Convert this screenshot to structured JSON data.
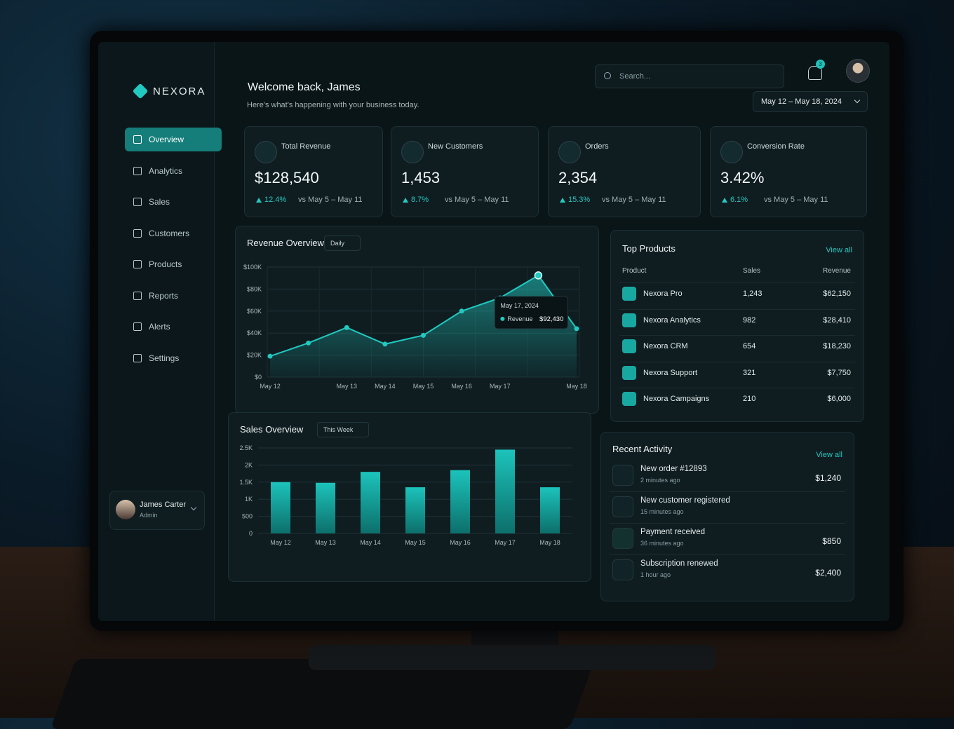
{
  "sidebar": {
    "brand": "NEXORA",
    "nav": [
      "Overview",
      "Analytics",
      "Sales",
      "Customers",
      "Products",
      "Reports",
      "Alerts",
      "Settings"
    ],
    "user": {
      "name": "James Carter",
      "role": "Admin"
    }
  },
  "header": {
    "title": "Welcome back, James",
    "subtitle": "Here's what's happening with your business today.",
    "search": "Search...",
    "notifications": "3",
    "date_range": "May 12 – May 18, 2024"
  },
  "kpis": [
    {
      "label": "Total Revenue",
      "value": "$128,540",
      "change": "12.4%",
      "period": "vs May 5 – May 11"
    },
    {
      "label": "New Customers",
      "value": "1,453",
      "change": "8.7%",
      "period": "vs May 5 – May 11"
    },
    {
      "label": "Orders",
      "value": "2,354",
      "change": "15.3%",
      "period": "vs May 5 – May 11"
    },
    {
      "label": "Conversion Rate",
      "value": "3.42%",
      "change": "6.1%",
      "period": "vs May 5 – May 11"
    }
  ],
  "revenue_chart": {
    "type": "area",
    "title": "Revenue Overview",
    "period": "Daily",
    "color": "#22c9c0",
    "categories": [
      "May 12",
      null,
      "May 13",
      "May 14",
      "May 15",
      "May 16",
      "May 17",
      null,
      "May 18"
    ],
    "values": [
      19000,
      31000,
      45000,
      30000,
      38000,
      60000,
      72000,
      92430,
      44000
    ],
    "value_labels": [
      null,
      null,
      null,
      null,
      null,
      null,
      null,
      "$92,430",
      null
    ],
    "tooltip": {
      "date": "May 17, 2024",
      "series": "Revenue"
    },
    "ylim": [
      0,
      100000
    ],
    "yticks": [
      {
        "value": 0,
        "label": "$0"
      },
      {
        "value": 20000,
        "label": "$20K"
      },
      {
        "value": 40000,
        "label": "$40K"
      },
      {
        "value": 60000,
        "label": "$60K"
      },
      {
        "value": 80000,
        "label": "$80K"
      },
      {
        "value": 100000,
        "label": "$100K"
      }
    ],
    "grid": true
  },
  "sales_chart": {
    "type": "bar",
    "title": "Sales Overview",
    "period": "This Week",
    "color": "#1cc3bb",
    "categories": [
      "May 12",
      "May 13",
      "May 14",
      "May 15",
      "May 16",
      "May 17",
      "May 18"
    ],
    "values": [
      1500,
      1480,
      1800,
      1350,
      1850,
      2450,
      1350
    ],
    "ylim": [
      0,
      2500
    ],
    "yticks": [
      0,
      500,
      {
        "value": 1000,
        "label": "1K"
      },
      {
        "value": 1500,
        "label": "1.5K"
      },
      {
        "value": 2000,
        "label": "2K"
      },
      {
        "value": 2500,
        "label": "2.5K"
      }
    ],
    "grid": true
  },
  "top_products": {
    "title": "Top Products",
    "link": "View all",
    "columns": [
      "Product",
      "Sales",
      "Revenue"
    ],
    "rows": [
      [
        "Nexora Pro",
        "1,243",
        "$62,150"
      ],
      [
        "Nexora Analytics",
        "982",
        "$28,410"
      ],
      [
        "Nexora CRM",
        "654",
        "$18,230"
      ],
      [
        "Nexora Support",
        "321",
        "$7,750"
      ],
      [
        "Nexora Campaigns",
        "210",
        "$6,000"
      ]
    ]
  },
  "recent_activity": {
    "title": "Recent Activity",
    "link": "View all",
    "items": [
      {
        "title": "New order #12893",
        "time": "2 minutes ago",
        "amount": "$1,240"
      },
      {
        "title": "New customer registered",
        "time": "15 minutes ago"
      },
      {
        "title": "Payment received",
        "time": "36 minutes ago",
        "amount": "$850"
      },
      {
        "title": "Subscription renewed",
        "time": "1 hour ago",
        "amount": "$2,400"
      }
    ]
  }
}
